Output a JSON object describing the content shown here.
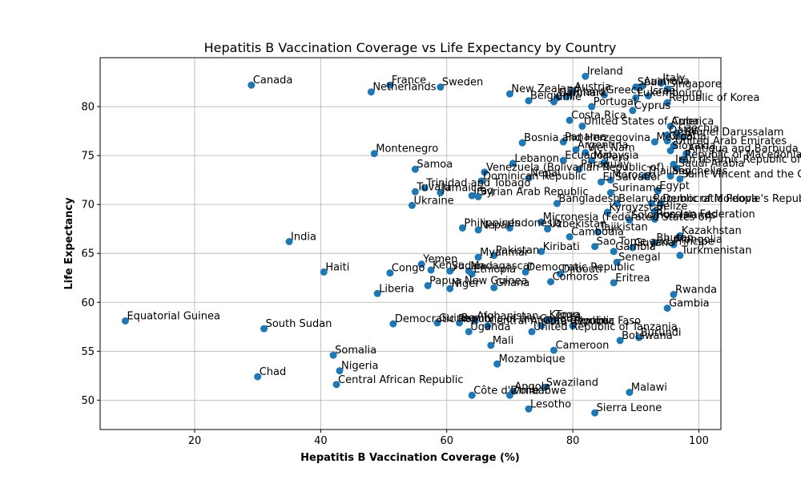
{
  "chart_data": {
    "type": "scatter",
    "title": "Hepatitis B Vaccination Coverage vs Life Expectancy by Country",
    "xlabel": "Hepatitis B Vaccination Coverage (%)",
    "ylabel": "Life Expectancy",
    "xlim": [
      5,
      103.5
    ],
    "ylim": [
      47,
      85
    ],
    "xticks": [
      20,
      40,
      60,
      80,
      100
    ],
    "yticks": [
      50,
      55,
      60,
      65,
      70,
      75,
      80
    ],
    "grid": true,
    "marker_color": "#1f77b4",
    "points": [
      {
        "label": "Ireland",
        "x": 82.0,
        "y": 83.1
      },
      {
        "label": "Italy",
        "x": 94.0,
        "y": 82.4
      },
      {
        "label": "Spain",
        "x": 90.0,
        "y": 82.0
      },
      {
        "label": "Australia",
        "x": 91.0,
        "y": 82.1
      },
      {
        "label": "Singapore",
        "x": 95.0,
        "y": 81.8
      },
      {
        "label": "Canada",
        "x": 29.0,
        "y": 82.2
      },
      {
        "label": "France",
        "x": 51.0,
        "y": 82.2
      },
      {
        "label": "Sweden",
        "x": 59.0,
        "y": 82.0
      },
      {
        "label": "Netherlands",
        "x": 48.0,
        "y": 81.5
      },
      {
        "label": "New Zealand",
        "x": 70.0,
        "y": 81.3
      },
      {
        "label": "Austria",
        "x": 80.0,
        "y": 81.5
      },
      {
        "label": "Denmark",
        "x": 77.5,
        "y": 80.9
      },
      {
        "label": "Finland",
        "x": 79.0,
        "y": 81.0
      },
      {
        "label": "Belgium",
        "x": 73.0,
        "y": 80.6
      },
      {
        "label": "Chile",
        "x": 77.0,
        "y": 80.5
      },
      {
        "label": "Greece",
        "x": 85.0,
        "y": 81.2
      },
      {
        "label": "Israel",
        "x": 92.0,
        "y": 81.1
      },
      {
        "label": "Luxembourg",
        "x": 90.0,
        "y": 80.9
      },
      {
        "label": "Republic of Korea",
        "x": 95.0,
        "y": 80.4
      },
      {
        "label": "Portugal",
        "x": 83.0,
        "y": 80.0
      },
      {
        "label": "Cyprus",
        "x": 89.5,
        "y": 79.6
      },
      {
        "label": "Costa Rica",
        "x": 79.5,
        "y": 78.6
      },
      {
        "label": "United States of America",
        "x": 81.5,
        "y": 78.0
      },
      {
        "label": "Cuba",
        "x": 95.5,
        "y": 78.0
      },
      {
        "label": "Czechia",
        "x": 96.5,
        "y": 77.3
      },
      {
        "label": "Qatar",
        "x": 95.0,
        "y": 77.1
      },
      {
        "label": "Brunei Darussalam",
        "x": 97.5,
        "y": 76.9
      },
      {
        "label": "Mexico",
        "x": 93.0,
        "y": 76.4
      },
      {
        "label": "Croatia",
        "x": 95.0,
        "y": 76.5
      },
      {
        "label": "Bosnia and Herzegovina",
        "x": 72.0,
        "y": 76.3
      },
      {
        "label": "Panama",
        "x": 78.5,
        "y": 76.4
      },
      {
        "label": "United Arab Emirates",
        "x": 96.0,
        "y": 76.0
      },
      {
        "label": "Argentina",
        "x": 80.5,
        "y": 75.6
      },
      {
        "label": "Slovakia",
        "x": 95.5,
        "y": 75.5
      },
      {
        "label": "Antigua and Barbuda",
        "x": 98.0,
        "y": 75.2
      },
      {
        "label": "Republic of Macedonia",
        "x": 97.5,
        "y": 74.6
      },
      {
        "label": "Montenegro",
        "x": 48.5,
        "y": 75.2
      },
      {
        "label": "Viet Nam",
        "x": 82.0,
        "y": 75.3
      },
      {
        "label": "Ecuador",
        "x": 78.5,
        "y": 74.5
      },
      {
        "label": "Lebanon",
        "x": 70.5,
        "y": 74.2
      },
      {
        "label": "Iran (Islamic Republic of)",
        "x": 96.0,
        "y": 74.1
      },
      {
        "label": "Malaysia",
        "x": 83.0,
        "y": 74.5
      },
      {
        "label": "Saudi Arabia",
        "x": 96.5,
        "y": 73.7
      },
      {
        "label": "Peru",
        "x": 85.0,
        "y": 74.3
      },
      {
        "label": "Samoa",
        "x": 55.0,
        "y": 73.6
      },
      {
        "label": "Venezuela (Bolivarian Republic of)",
        "x": 66.0,
        "y": 73.3
      },
      {
        "label": "Paraguay",
        "x": 81.0,
        "y": 73.6
      },
      {
        "label": "Seychelles",
        "x": 95.5,
        "y": 72.9
      },
      {
        "label": "Saint Vincent and the Grenadines",
        "x": 97.0,
        "y": 72.6
      },
      {
        "label": "Dominican Republic",
        "x": 65.5,
        "y": 72.4
      },
      {
        "label": "Nepal",
        "x": 73.0,
        "y": 72.7
      },
      {
        "label": "Thailand",
        "x": 91.5,
        "y": 72.9
      },
      {
        "label": "El Salvador",
        "x": 84.5,
        "y": 72.3
      },
      {
        "label": "Morocco",
        "x": 86.0,
        "y": 72.5
      },
      {
        "label": "Egypt",
        "x": 93.5,
        "y": 71.4
      },
      {
        "label": "Suriname",
        "x": 86.0,
        "y": 71.2
      },
      {
        "label": "Trinidad and Tobago",
        "x": 56.5,
        "y": 71.7
      },
      {
        "label": "Jamaica",
        "x": 59.0,
        "y": 71.2
      },
      {
        "label": "Tuvalu",
        "x": 55.0,
        "y": 71.3
      },
      {
        "label": "Syrian Arab Republic",
        "x": 65.0,
        "y": 70.8
      },
      {
        "label": "Iraq",
        "x": 64.0,
        "y": 70.9
      },
      {
        "label": "Bangladesh",
        "x": 77.5,
        "y": 70.1
      },
      {
        "label": "Belarus",
        "x": 87.0,
        "y": 70.1
      },
      {
        "label": "Democratic People's Republic of Korea",
        "x": 94.0,
        "y": 70.1
      },
      {
        "label": "Republic of Moldova",
        "x": 92.5,
        "y": 70.1
      },
      {
        "label": "Ukraine",
        "x": 54.5,
        "y": 69.9
      },
      {
        "label": "Belize",
        "x": 93.0,
        "y": 69.3
      },
      {
        "label": "Kyrgyzstan",
        "x": 85.5,
        "y": 69.2
      },
      {
        "label": "Micronesia (Federated States of)",
        "x": 75.0,
        "y": 68.2
      },
      {
        "label": "Russian Federation",
        "x": 93.0,
        "y": 68.5
      },
      {
        "label": "Solomon Islands",
        "x": 89.0,
        "y": 68.4
      },
      {
        "label": "Philippines",
        "x": 62.5,
        "y": 67.6
      },
      {
        "label": "Nepal",
        "x": 65.0,
        "y": 67.4
      },
      {
        "label": "Indonesia",
        "x": 70.0,
        "y": 67.6
      },
      {
        "label": "Uzbekistan",
        "x": 76.0,
        "y": 67.5
      },
      {
        "label": "Tajikistan",
        "x": 84.0,
        "y": 67.2
      },
      {
        "label": "Kazakhstan",
        "x": 97.0,
        "y": 66.8
      },
      {
        "label": "Cambodia",
        "x": 79.5,
        "y": 66.7
      },
      {
        "label": "India",
        "x": 35.0,
        "y": 66.2
      },
      {
        "label": "Bhutan",
        "x": 93.0,
        "y": 66.1
      },
      {
        "label": "Mongolia",
        "x": 96.0,
        "y": 65.9
      },
      {
        "label": "Sao Tome and Principe",
        "x": 83.5,
        "y": 65.7
      },
      {
        "label": "Guyana",
        "x": 89.5,
        "y": 65.6
      },
      {
        "label": "Gambia",
        "x": 86.5,
        "y": 65.2
      },
      {
        "label": "Turkmenistan",
        "x": 97.0,
        "y": 64.8
      },
      {
        "label": "Kiribati",
        "x": 75.0,
        "y": 65.2
      },
      {
        "label": "Pakistan",
        "x": 67.5,
        "y": 64.8
      },
      {
        "label": "Myanmar",
        "x": 65.0,
        "y": 64.6
      },
      {
        "label": "Senegal",
        "x": 87.0,
        "y": 64.1
      },
      {
        "label": "Yemen",
        "x": 56.0,
        "y": 63.9
      },
      {
        "label": "Kenya",
        "x": 57.5,
        "y": 63.3
      },
      {
        "label": "Sudan",
        "x": 60.5,
        "y": 63.2
      },
      {
        "label": "Madagascar",
        "x": 63.5,
        "y": 63.2
      },
      {
        "label": "Ethiopia",
        "x": 64.0,
        "y": 62.9
      },
      {
        "label": "Democratic Republic",
        "x": 72.5,
        "y": 63.1
      },
      {
        "label": "Djibouti",
        "x": 78.0,
        "y": 62.9
      },
      {
        "label": "Haiti",
        "x": 40.5,
        "y": 63.1
      },
      {
        "label": "Congo",
        "x": 51.0,
        "y": 63.0
      },
      {
        "label": "Comoros",
        "x": 76.5,
        "y": 62.1
      },
      {
        "label": "Eritrea",
        "x": 86.5,
        "y": 62.0
      },
      {
        "label": "Papua New Guinea",
        "x": 57.0,
        "y": 61.7
      },
      {
        "label": "Niger",
        "x": 60.5,
        "y": 61.4
      },
      {
        "label": "Ghana",
        "x": 67.5,
        "y": 61.5
      },
      {
        "label": "Rwanda",
        "x": 96.0,
        "y": 60.8
      },
      {
        "label": "Liberia",
        "x": 49.0,
        "y": 60.9
      },
      {
        "label": "Gambia",
        "x": 95.0,
        "y": 59.4
      },
      {
        "label": "Equatorial Guinea",
        "x": 9.0,
        "y": 58.1
      },
      {
        "label": "Afghanistan",
        "x": 64.5,
        "y": 58.1
      },
      {
        "label": "Kenya",
        "x": 76.0,
        "y": 58.2
      },
      {
        "label": "Togo",
        "x": 77.0,
        "y": 58.2
      },
      {
        "label": "Democratic Republic of the Congo",
        "x": 51.5,
        "y": 57.8
      },
      {
        "label": "Guinea",
        "x": 58.5,
        "y": 57.9
      },
      {
        "label": "Benin",
        "x": 62.0,
        "y": 57.9
      },
      {
        "label": "Central African Republic",
        "x": 66.5,
        "y": 57.6
      },
      {
        "label": "Burkina Faso",
        "x": 80.0,
        "y": 57.6
      },
      {
        "label": "Cote d'Ivoire",
        "x": 75.0,
        "y": 57.6
      },
      {
        "label": "South Sudan",
        "x": 31.0,
        "y": 57.3
      },
      {
        "label": "Uganda",
        "x": 63.5,
        "y": 57.0
      },
      {
        "label": "United Republic of Tanzania",
        "x": 73.5,
        "y": 57.0
      },
      {
        "label": "Burundi",
        "x": 90.5,
        "y": 56.4
      },
      {
        "label": "Botswana",
        "x": 87.5,
        "y": 56.1
      },
      {
        "label": "Mali",
        "x": 67.0,
        "y": 55.6
      },
      {
        "label": "Cameroon",
        "x": 77.0,
        "y": 55.1
      },
      {
        "label": "Somalia",
        "x": 42.0,
        "y": 54.6
      },
      {
        "label": "Mozambique",
        "x": 68.0,
        "y": 53.7
      },
      {
        "label": "Nigeria",
        "x": 43.0,
        "y": 53.0
      },
      {
        "label": "Chad",
        "x": 30.0,
        "y": 52.4
      },
      {
        "label": "Central African Republic",
        "x": 42.5,
        "y": 51.6
      },
      {
        "label": "Swaziland",
        "x": 75.5,
        "y": 51.3
      },
      {
        "label": "Malawi",
        "x": 89.0,
        "y": 50.8
      },
      {
        "label": "Angola",
        "x": 70.5,
        "y": 50.9
      },
      {
        "label": "Zimbabwe",
        "x": 70.0,
        "y": 50.5
      },
      {
        "label": "Côte d'Ivoire",
        "x": 64.0,
        "y": 50.5
      },
      {
        "label": "Lesotho",
        "x": 73.0,
        "y": 49.1
      },
      {
        "label": "Sierra Leone",
        "x": 83.5,
        "y": 48.7
      }
    ]
  }
}
